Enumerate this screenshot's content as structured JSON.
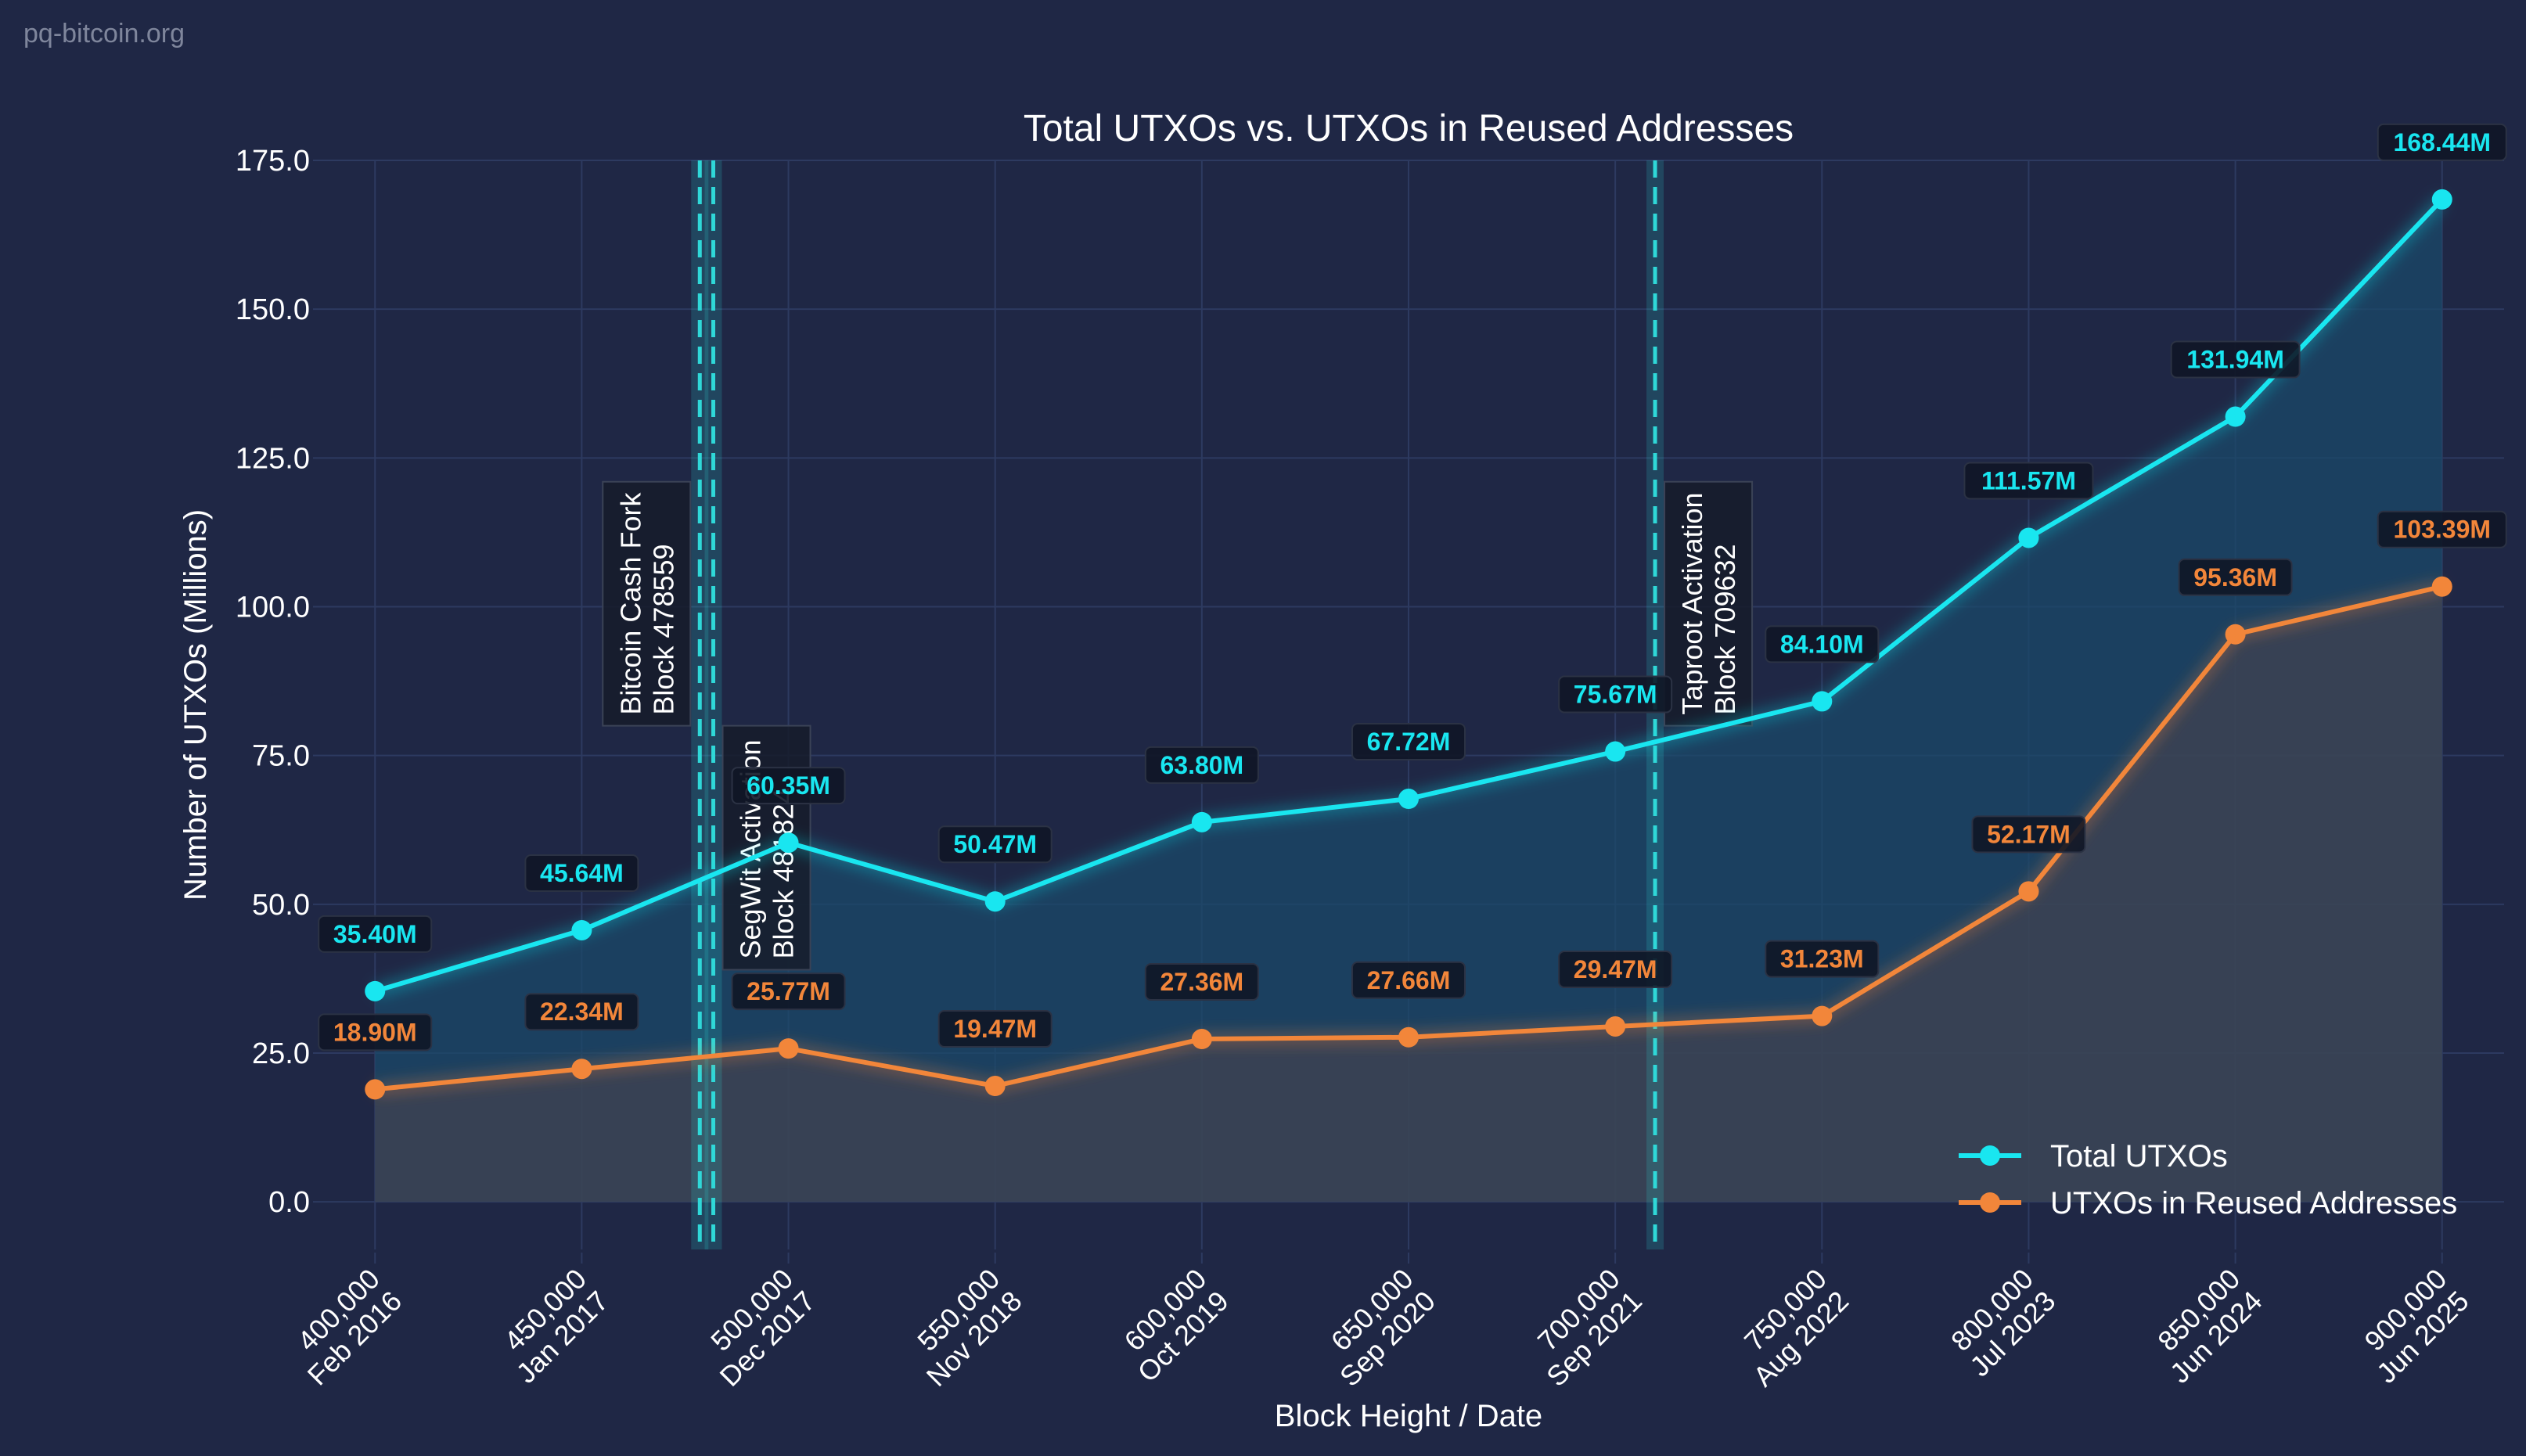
{
  "watermark": "pq-bitcoin.org",
  "colors": {
    "background": "#1f2745",
    "grid": "#2d3a60",
    "total": "#19e6f0",
    "reused": "#f2863a",
    "total_fill": "#1b4a6a",
    "reused_fill": "#3a4555",
    "label_box": "#0f1626",
    "annotation_box": "#161c2a",
    "vline": "#2fd8d8",
    "text": "#ffffff"
  },
  "chart_data": {
    "type": "line",
    "title": "Total UTXOs vs. UTXOs in Reused Addresses",
    "xlabel": "Block Height / Date",
    "ylabel": "Number of UTXOs (Millions)",
    "xlim": [
      385000,
      915000
    ],
    "ylim": [
      -8,
      175
    ],
    "grid": true,
    "legend_position": "bottom-right",
    "x_ticks": [
      {
        "value": 400000,
        "line1": "400,000",
        "line2": "Feb 2016"
      },
      {
        "value": 450000,
        "line1": "450,000",
        "line2": "Jan 2017"
      },
      {
        "value": 500000,
        "line1": "500,000",
        "line2": "Dec 2017"
      },
      {
        "value": 550000,
        "line1": "550,000",
        "line2": "Nov 2018"
      },
      {
        "value": 600000,
        "line1": "600,000",
        "line2": "Oct 2019"
      },
      {
        "value": 650000,
        "line1": "650,000",
        "line2": "Sep 2020"
      },
      {
        "value": 700000,
        "line1": "700,000",
        "line2": "Sep 2021"
      },
      {
        "value": 750000,
        "line1": "750,000",
        "line2": "Aug 2022"
      },
      {
        "value": 800000,
        "line1": "800,000",
        "line2": "Jul 2023"
      },
      {
        "value": 850000,
        "line1": "850,000",
        "line2": "Jun 2024"
      },
      {
        "value": 900000,
        "line1": "900,000",
        "line2": "Jun 2025"
      }
    ],
    "y_ticks": [
      {
        "value": 0,
        "label": "0.0"
      },
      {
        "value": 25,
        "label": "25.0"
      },
      {
        "value": 50,
        "label": "50.0"
      },
      {
        "value": 75,
        "label": "75.0"
      },
      {
        "value": 100,
        "label": "100.0"
      },
      {
        "value": 125,
        "label": "125.0"
      },
      {
        "value": 150,
        "label": "150.0"
      },
      {
        "value": 175,
        "label": "175.0"
      }
    ],
    "x": [
      400000,
      450000,
      500000,
      550000,
      600000,
      650000,
      700000,
      750000,
      800000,
      850000,
      900000
    ],
    "series": [
      {
        "name": "Total UTXOs",
        "color": "#19e6f0",
        "values": [
          35.4,
          45.64,
          60.35,
          50.47,
          63.8,
          67.72,
          75.67,
          84.1,
          111.57,
          131.94,
          168.44
        ],
        "labels": [
          "35.40M",
          "45.64M",
          "60.35M",
          "50.47M",
          "63.80M",
          "67.72M",
          "75.67M",
          "84.10M",
          "111.57M",
          "131.94M",
          "168.44M"
        ]
      },
      {
        "name": "UTXOs in Reused Addresses",
        "color": "#f2863a",
        "values": [
          18.9,
          22.34,
          25.77,
          19.47,
          27.36,
          27.66,
          29.47,
          31.23,
          52.17,
          95.36,
          103.39
        ],
        "labels": [
          "18.90M",
          "22.34M",
          "25.77M",
          "19.47M",
          "27.36M",
          "27.66M",
          "29.47M",
          "31.23M",
          "52.17M",
          "95.36M",
          "103.39M"
        ]
      }
    ],
    "events": [
      {
        "block": 478559,
        "line1": "Bitcoin Cash Fork",
        "line2": "Block 478559",
        "label_side": "left",
        "label_top": 121,
        "label_bottom": 80
      },
      {
        "block": 481824,
        "line1": "SegWit Activation",
        "line2": "Block 481824",
        "label_side": "right",
        "label_top": 80,
        "label_bottom": 39
      },
      {
        "block": 709632,
        "line1": "Taproot Activation",
        "line2": "Block 709632",
        "label_side": "right",
        "label_top": 121,
        "label_bottom": 80
      }
    ]
  }
}
